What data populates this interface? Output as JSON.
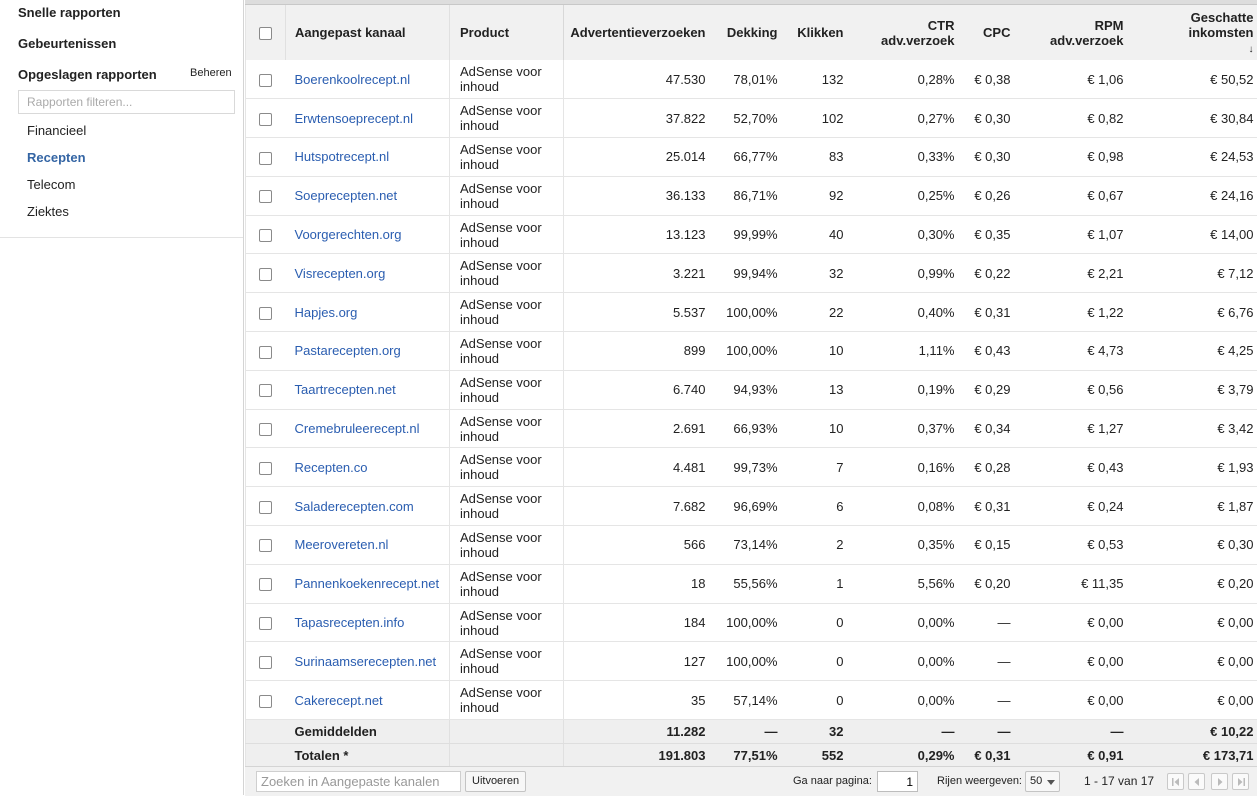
{
  "sidebar": {
    "snelle": "Snelle rapporten",
    "gebeurtenissen": "Gebeurtenissen",
    "opgeslagen": "Opgeslagen rapporten",
    "beheren": "Beheren",
    "filter_placeholder": "Rapporten filteren...",
    "reports": [
      {
        "label": "Financieel",
        "active": false
      },
      {
        "label": "Recepten",
        "active": true
      },
      {
        "label": "Telecom",
        "active": false
      },
      {
        "label": "Ziektes",
        "active": false
      }
    ]
  },
  "table": {
    "headers": {
      "kanaal": "Aangepast kanaal",
      "product": "Product",
      "adv": "Advertentieverzoeken",
      "dekking": "Dekking",
      "klikken": "Klikken",
      "ctr_1": "CTR",
      "ctr_2": "adv.verzoek",
      "cpc": "CPC",
      "rpm_1": "RPM",
      "rpm_2": "adv.verzoek",
      "inc_1": "Geschatte",
      "inc_2": "inkomsten",
      "sort_icon": "sort-desc-arrow"
    },
    "rows": [
      {
        "kanaal": "Boerenkoolrecept.nl",
        "product": "AdSense voor inhoud",
        "adv": "47.530",
        "dekking": "78,01%",
        "klikken": "132",
        "ctr": "0,28%",
        "cpc": "€ 0,38",
        "rpm": "€ 1,06",
        "inkomsten": "€ 50,52"
      },
      {
        "kanaal": "Erwtensoeprecept.nl",
        "product": "AdSense voor inhoud",
        "adv": "37.822",
        "dekking": "52,70%",
        "klikken": "102",
        "ctr": "0,27%",
        "cpc": "€ 0,30",
        "rpm": "€ 0,82",
        "inkomsten": "€ 30,84"
      },
      {
        "kanaal": "Hutspotrecept.nl",
        "product": "AdSense voor inhoud",
        "adv": "25.014",
        "dekking": "66,77%",
        "klikken": "83",
        "ctr": "0,33%",
        "cpc": "€ 0,30",
        "rpm": "€ 0,98",
        "inkomsten": "€ 24,53"
      },
      {
        "kanaal": "Soeprecepten.net",
        "product": "AdSense voor inhoud",
        "adv": "36.133",
        "dekking": "86,71%",
        "klikken": "92",
        "ctr": "0,25%",
        "cpc": "€ 0,26",
        "rpm": "€ 0,67",
        "inkomsten": "€ 24,16"
      },
      {
        "kanaal": "Voorgerechten.org",
        "product": "AdSense voor inhoud",
        "adv": "13.123",
        "dekking": "99,99%",
        "klikken": "40",
        "ctr": "0,30%",
        "cpc": "€ 0,35",
        "rpm": "€ 1,07",
        "inkomsten": "€ 14,00"
      },
      {
        "kanaal": "Visrecepten.org",
        "product": "AdSense voor inhoud",
        "adv": "3.221",
        "dekking": "99,94%",
        "klikken": "32",
        "ctr": "0,99%",
        "cpc": "€ 0,22",
        "rpm": "€ 2,21",
        "inkomsten": "€ 7,12"
      },
      {
        "kanaal": "Hapjes.org",
        "product": "AdSense voor inhoud",
        "adv": "5.537",
        "dekking": "100,00%",
        "klikken": "22",
        "ctr": "0,40%",
        "cpc": "€ 0,31",
        "rpm": "€ 1,22",
        "inkomsten": "€ 6,76"
      },
      {
        "kanaal": "Pastarecepten.org",
        "product": "AdSense voor inhoud",
        "adv": "899",
        "dekking": "100,00%",
        "klikken": "10",
        "ctr": "1,11%",
        "cpc": "€ 0,43",
        "rpm": "€ 4,73",
        "inkomsten": "€ 4,25"
      },
      {
        "kanaal": "Taartrecepten.net",
        "product": "AdSense voor inhoud",
        "adv": "6.740",
        "dekking": "94,93%",
        "klikken": "13",
        "ctr": "0,19%",
        "cpc": "€ 0,29",
        "rpm": "€ 0,56",
        "inkomsten": "€ 3,79"
      },
      {
        "kanaal": "Cremebruleerecept.nl",
        "product": "AdSense voor inhoud",
        "adv": "2.691",
        "dekking": "66,93%",
        "klikken": "10",
        "ctr": "0,37%",
        "cpc": "€ 0,34",
        "rpm": "€ 1,27",
        "inkomsten": "€ 3,42"
      },
      {
        "kanaal": "Recepten.co",
        "product": "AdSense voor inhoud",
        "adv": "4.481",
        "dekking": "99,73%",
        "klikken": "7",
        "ctr": "0,16%",
        "cpc": "€ 0,28",
        "rpm": "€ 0,43",
        "inkomsten": "€ 1,93"
      },
      {
        "kanaal": "Saladerecepten.com",
        "product": "AdSense voor inhoud",
        "adv": "7.682",
        "dekking": "96,69%",
        "klikken": "6",
        "ctr": "0,08%",
        "cpc": "€ 0,31",
        "rpm": "€ 0,24",
        "inkomsten": "€ 1,87"
      },
      {
        "kanaal": "Meerovereten.nl",
        "product": "AdSense voor inhoud",
        "adv": "566",
        "dekking": "73,14%",
        "klikken": "2",
        "ctr": "0,35%",
        "cpc": "€ 0,15",
        "rpm": "€ 0,53",
        "inkomsten": "€ 0,30"
      },
      {
        "kanaal": "Pannenkoekenrecept.net",
        "product": "AdSense voor inhoud",
        "adv": "18",
        "dekking": "55,56%",
        "klikken": "1",
        "ctr": "5,56%",
        "cpc": "€ 0,20",
        "rpm": "€ 11,35",
        "inkomsten": "€ 0,20"
      },
      {
        "kanaal": "Tapasrecepten.info",
        "product": "AdSense voor inhoud",
        "adv": "184",
        "dekking": "100,00%",
        "klikken": "0",
        "ctr": "0,00%",
        "cpc": "—",
        "rpm": "€ 0,00",
        "inkomsten": "€ 0,00"
      },
      {
        "kanaal": "Surinaamserecepten.net",
        "product": "AdSense voor inhoud",
        "adv": "127",
        "dekking": "100,00%",
        "klikken": "0",
        "ctr": "0,00%",
        "cpc": "—",
        "rpm": "€ 0,00",
        "inkomsten": "€ 0,00"
      },
      {
        "kanaal": "Cakerecept.net",
        "product": "AdSense voor inhoud",
        "adv": "35",
        "dekking": "57,14%",
        "klikken": "0",
        "ctr": "0,00%",
        "cpc": "—",
        "rpm": "€ 0,00",
        "inkomsten": "€ 0,00"
      }
    ],
    "averages": {
      "label": "Gemiddelden",
      "adv": "11.282",
      "dekking": "—",
      "klikken": "32",
      "ctr": "—",
      "cpc": "—",
      "rpm": "—",
      "inkomsten": "€ 10,22"
    },
    "totals": {
      "label": "Totalen *",
      "adv": "191.803",
      "dekking": "77,51%",
      "klikken": "552",
      "ctr": "0,29%",
      "cpc": "€ 0,31",
      "rpm": "€ 0,91",
      "inkomsten": "€ 173,71"
    }
  },
  "footer": {
    "search_placeholder": "Zoeken in Aangepaste kanalen",
    "search_button": "Uitvoeren",
    "goto_label": "Ga naar pagina:",
    "page_value": "1",
    "rows_label": "Rijen weergeven:",
    "rows_value": "50",
    "range": "1 - 17 van 17",
    "pager_icons": [
      "first-page-icon",
      "prev-page-icon",
      "next-page-icon",
      "last-page-icon"
    ]
  },
  "colors": {
    "link": "#2a5db0",
    "active_report": "#3465a4",
    "header_bg": "#f1f1f1"
  }
}
